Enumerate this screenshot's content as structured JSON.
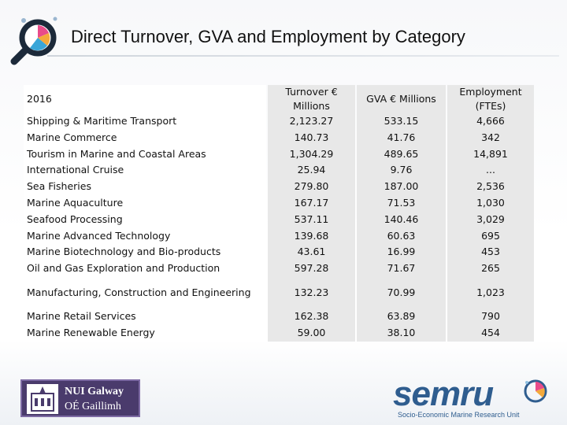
{
  "title": "Direct Turnover, GVA and Employment by Category",
  "table": {
    "year_label": "2016",
    "col_turnover": [
      "Turnover €",
      "Millions"
    ],
    "col_gva": "GVA € Millions",
    "col_employment": [
      "Employment",
      "(FTEs)"
    ],
    "rows": [
      {
        "category": "Shipping & Maritime Transport",
        "turnover": "2,123.27",
        "gva": "533.15",
        "employment": "4,666"
      },
      {
        "category": "Marine Commerce",
        "turnover": "140.73",
        "gva": "41.76",
        "employment": "342"
      },
      {
        "category": "Tourism in Marine and Coastal Areas",
        "turnover": "1,304.29",
        "gva": "489.65",
        "employment": "14,891"
      },
      {
        "category": "International Cruise",
        "turnover": "25.94",
        "gva": "9.76",
        "employment": "..."
      },
      {
        "category": "Sea Fisheries",
        "turnover": "279.80",
        "gva": "187.00",
        "employment": "2,536"
      },
      {
        "category": "Marine Aquaculture",
        "turnover": "167.17",
        "gva": "71.53",
        "employment": "1,030"
      },
      {
        "category": "Seafood Processing",
        "turnover": "537.11",
        "gva": "140.46",
        "employment": "3,029"
      },
      {
        "category": "Marine Advanced Technology",
        "turnover": "139.68",
        "gva": "60.63",
        "employment": "695"
      },
      {
        "category": "Marine Biotechnology and Bio-products",
        "turnover": "43.61",
        "gva": "16.99",
        "employment": "453"
      },
      {
        "category": "Oil and Gas Exploration and Production",
        "turnover": "597.28",
        "gva": "71.67",
        "employment": "265"
      },
      {
        "category": "Manufacturing, Construction and Engineering",
        "turnover": "132.23",
        "gva": "70.99",
        "employment": "1,023"
      },
      {
        "category": "Marine Retail Services",
        "turnover": "162.38",
        "gva": "63.89",
        "employment": "790"
      },
      {
        "category": "Marine Renewable Energy",
        "turnover": "59.00",
        "gva": "38.10",
        "employment": "454"
      }
    ]
  },
  "logos": {
    "nui_line1": "NUI Galway",
    "nui_line2": "OÉ Gaillimh",
    "semru_word": "semru",
    "semru_sub": "Socio-Economic Marine Research Unit"
  },
  "colors": {
    "header_fill": "#e8e8e8",
    "nui_purple": "#4a3b6c",
    "semru_blue": "#2f5d8f"
  },
  "icons": [
    "magnifier-pie-icon",
    "nui-crest-icon",
    "semru-swirl-icon"
  ]
}
